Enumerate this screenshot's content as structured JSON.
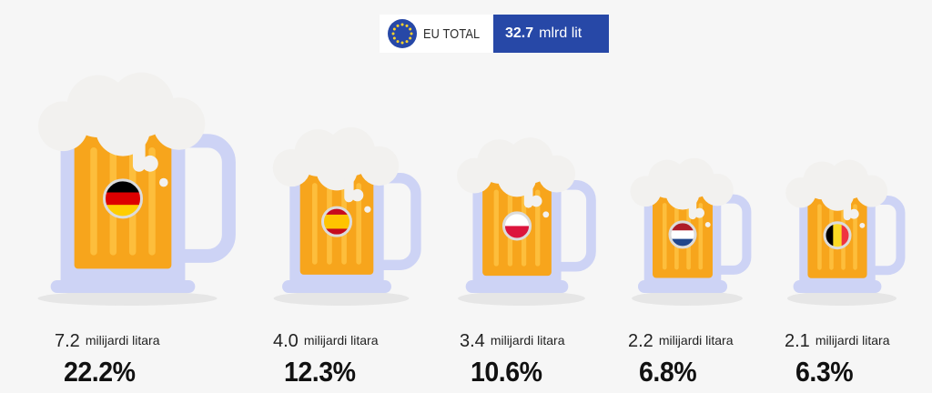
{
  "header": {
    "eu_label": "EU TOTAL",
    "total_value": "32.7",
    "total_unit": "mlrd lit"
  },
  "colors": {
    "beer": "#f7a51c",
    "beer_light": "#ffc94a",
    "foam": "#f2f1ef",
    "glass": "#cdd3f5",
    "glass_dark": "#b8c0ef",
    "shadow": "#e6e6e6",
    "eu_blue": "#2748a7"
  },
  "chart_data": {
    "type": "bar",
    "categories": [
      "Germany",
      "Spain",
      "Poland",
      "Netherlands",
      "Belgium"
    ],
    "flag_icons": [
      "flag-germany-icon",
      "flag-spain-icon",
      "flag-poland-icon",
      "flag-netherlands-icon",
      "flag-belgium-icon"
    ],
    "values": [
      7.2,
      4.0,
      3.4,
      2.2,
      2.1
    ],
    "shares_percent": [
      22.2,
      12.3,
      10.6,
      6.8,
      6.3
    ],
    "value_labels": [
      "7.2",
      "4.0",
      "3.4",
      "2.2",
      "2.1"
    ],
    "unit_label": "milijardi litara",
    "share_labels": [
      "22.2%",
      "12.3%",
      "10.6%",
      "6.8%",
      "6.3%"
    ]
  }
}
